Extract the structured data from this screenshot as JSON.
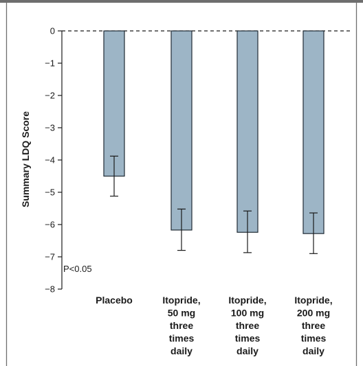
{
  "chart_data": {
    "type": "bar",
    "ylabel": "Summary LDQ Score",
    "xlabel": "",
    "ylim": [
      -8,
      0
    ],
    "yticks": [
      0,
      -1,
      -2,
      -3,
      -4,
      -5,
      -6,
      -7,
      -8
    ],
    "ytick_labels": [
      "0",
      "−1",
      "−2",
      "−3",
      "−4",
      "−5",
      "−6",
      "−7",
      "−8"
    ],
    "categories": [
      [
        "Placebo"
      ],
      [
        "Itopride,",
        "50 mg",
        "three",
        "times",
        "daily"
      ],
      [
        "Itopride,",
        "100 mg",
        "three",
        "times",
        "daily"
      ],
      [
        "Itopride,",
        "200 mg",
        "three",
        "times",
        "daily"
      ]
    ],
    "values": [
      -4.5,
      -6.17,
      -6.24,
      -6.28
    ],
    "error_low": [
      -5.12,
      -6.8,
      -6.87,
      -6.9
    ],
    "error_high": [
      -3.88,
      -5.52,
      -5.58,
      -5.64
    ],
    "annotation": "P<0.05",
    "grid": false,
    "zero_line": "dashed",
    "bar_color": "#9db5c6",
    "bar_edge_color": "#1f2a33"
  }
}
